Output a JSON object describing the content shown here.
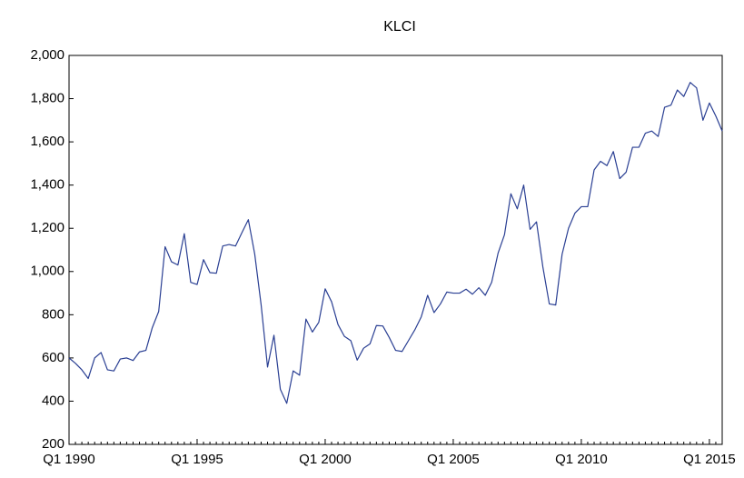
{
  "chart_data": {
    "type": "line",
    "title": "KLCI",
    "categories": [
      "Q1 1990",
      null,
      null,
      null,
      null,
      null,
      null,
      null,
      null,
      null,
      null,
      null,
      null,
      null,
      null,
      null,
      null,
      null,
      null,
      null,
      "Q1 1995",
      null,
      null,
      null,
      null,
      null,
      null,
      null,
      null,
      null,
      null,
      null,
      null,
      null,
      null,
      null,
      null,
      null,
      null,
      null,
      "Q1 2000",
      null,
      null,
      null,
      null,
      null,
      null,
      null,
      null,
      null,
      null,
      null,
      null,
      null,
      null,
      null,
      null,
      null,
      null,
      null,
      "Q1 2005",
      null,
      null,
      null,
      null,
      null,
      null,
      null,
      null,
      null,
      null,
      null,
      null,
      null,
      null,
      null,
      null,
      null,
      null,
      null,
      "Q1 2010",
      null,
      null,
      null,
      null,
      null,
      null,
      null,
      null,
      null,
      null,
      null,
      null,
      null,
      null,
      null,
      null,
      null,
      null,
      null,
      "Q1 2015",
      null,
      null
    ],
    "values": [
      600,
      575,
      545,
      505,
      600,
      625,
      545,
      540,
      595,
      600,
      588,
      628,
      635,
      740,
      815,
      1115,
      1045,
      1030,
      1175,
      950,
      940,
      1055,
      995,
      992,
      1118,
      1125,
      1118,
      1180,
      1240,
      1080,
      845,
      558,
      705,
      455,
      390,
      540,
      520,
      780,
      720,
      765,
      920,
      860,
      755,
      700,
      680,
      590,
      645,
      665,
      750,
      748,
      695,
      635,
      630,
      680,
      730,
      790,
      890,
      810,
      850,
      905,
      900,
      900,
      918,
      895,
      925,
      890,
      950,
      1085,
      1170,
      1360,
      1290,
      1400,
      1195,
      1230,
      1020,
      850,
      845,
      1080,
      1200,
      1270,
      1300,
      1300,
      1470,
      1510,
      1490,
      1555,
      1430,
      1460,
      1575,
      1575,
      1640,
      1650,
      1625,
      1760,
      1770,
      1840,
      1810,
      1875,
      1850,
      1700,
      1780,
      1720,
      1650
    ],
    "color": "#2a3f93",
    "ylim": [
      200,
      2000
    ],
    "yticks": [
      {
        "value": 2000,
        "label": "2,000"
      },
      {
        "value": 1800,
        "label": "1,800"
      },
      {
        "value": 1600,
        "label": "1,600"
      },
      {
        "value": 1400,
        "label": "1,400"
      },
      {
        "value": 1200,
        "label": "1,200"
      },
      {
        "value": 1000,
        "label": "1,000"
      },
      800,
      600,
      400,
      200
    ],
    "grid": false
  }
}
